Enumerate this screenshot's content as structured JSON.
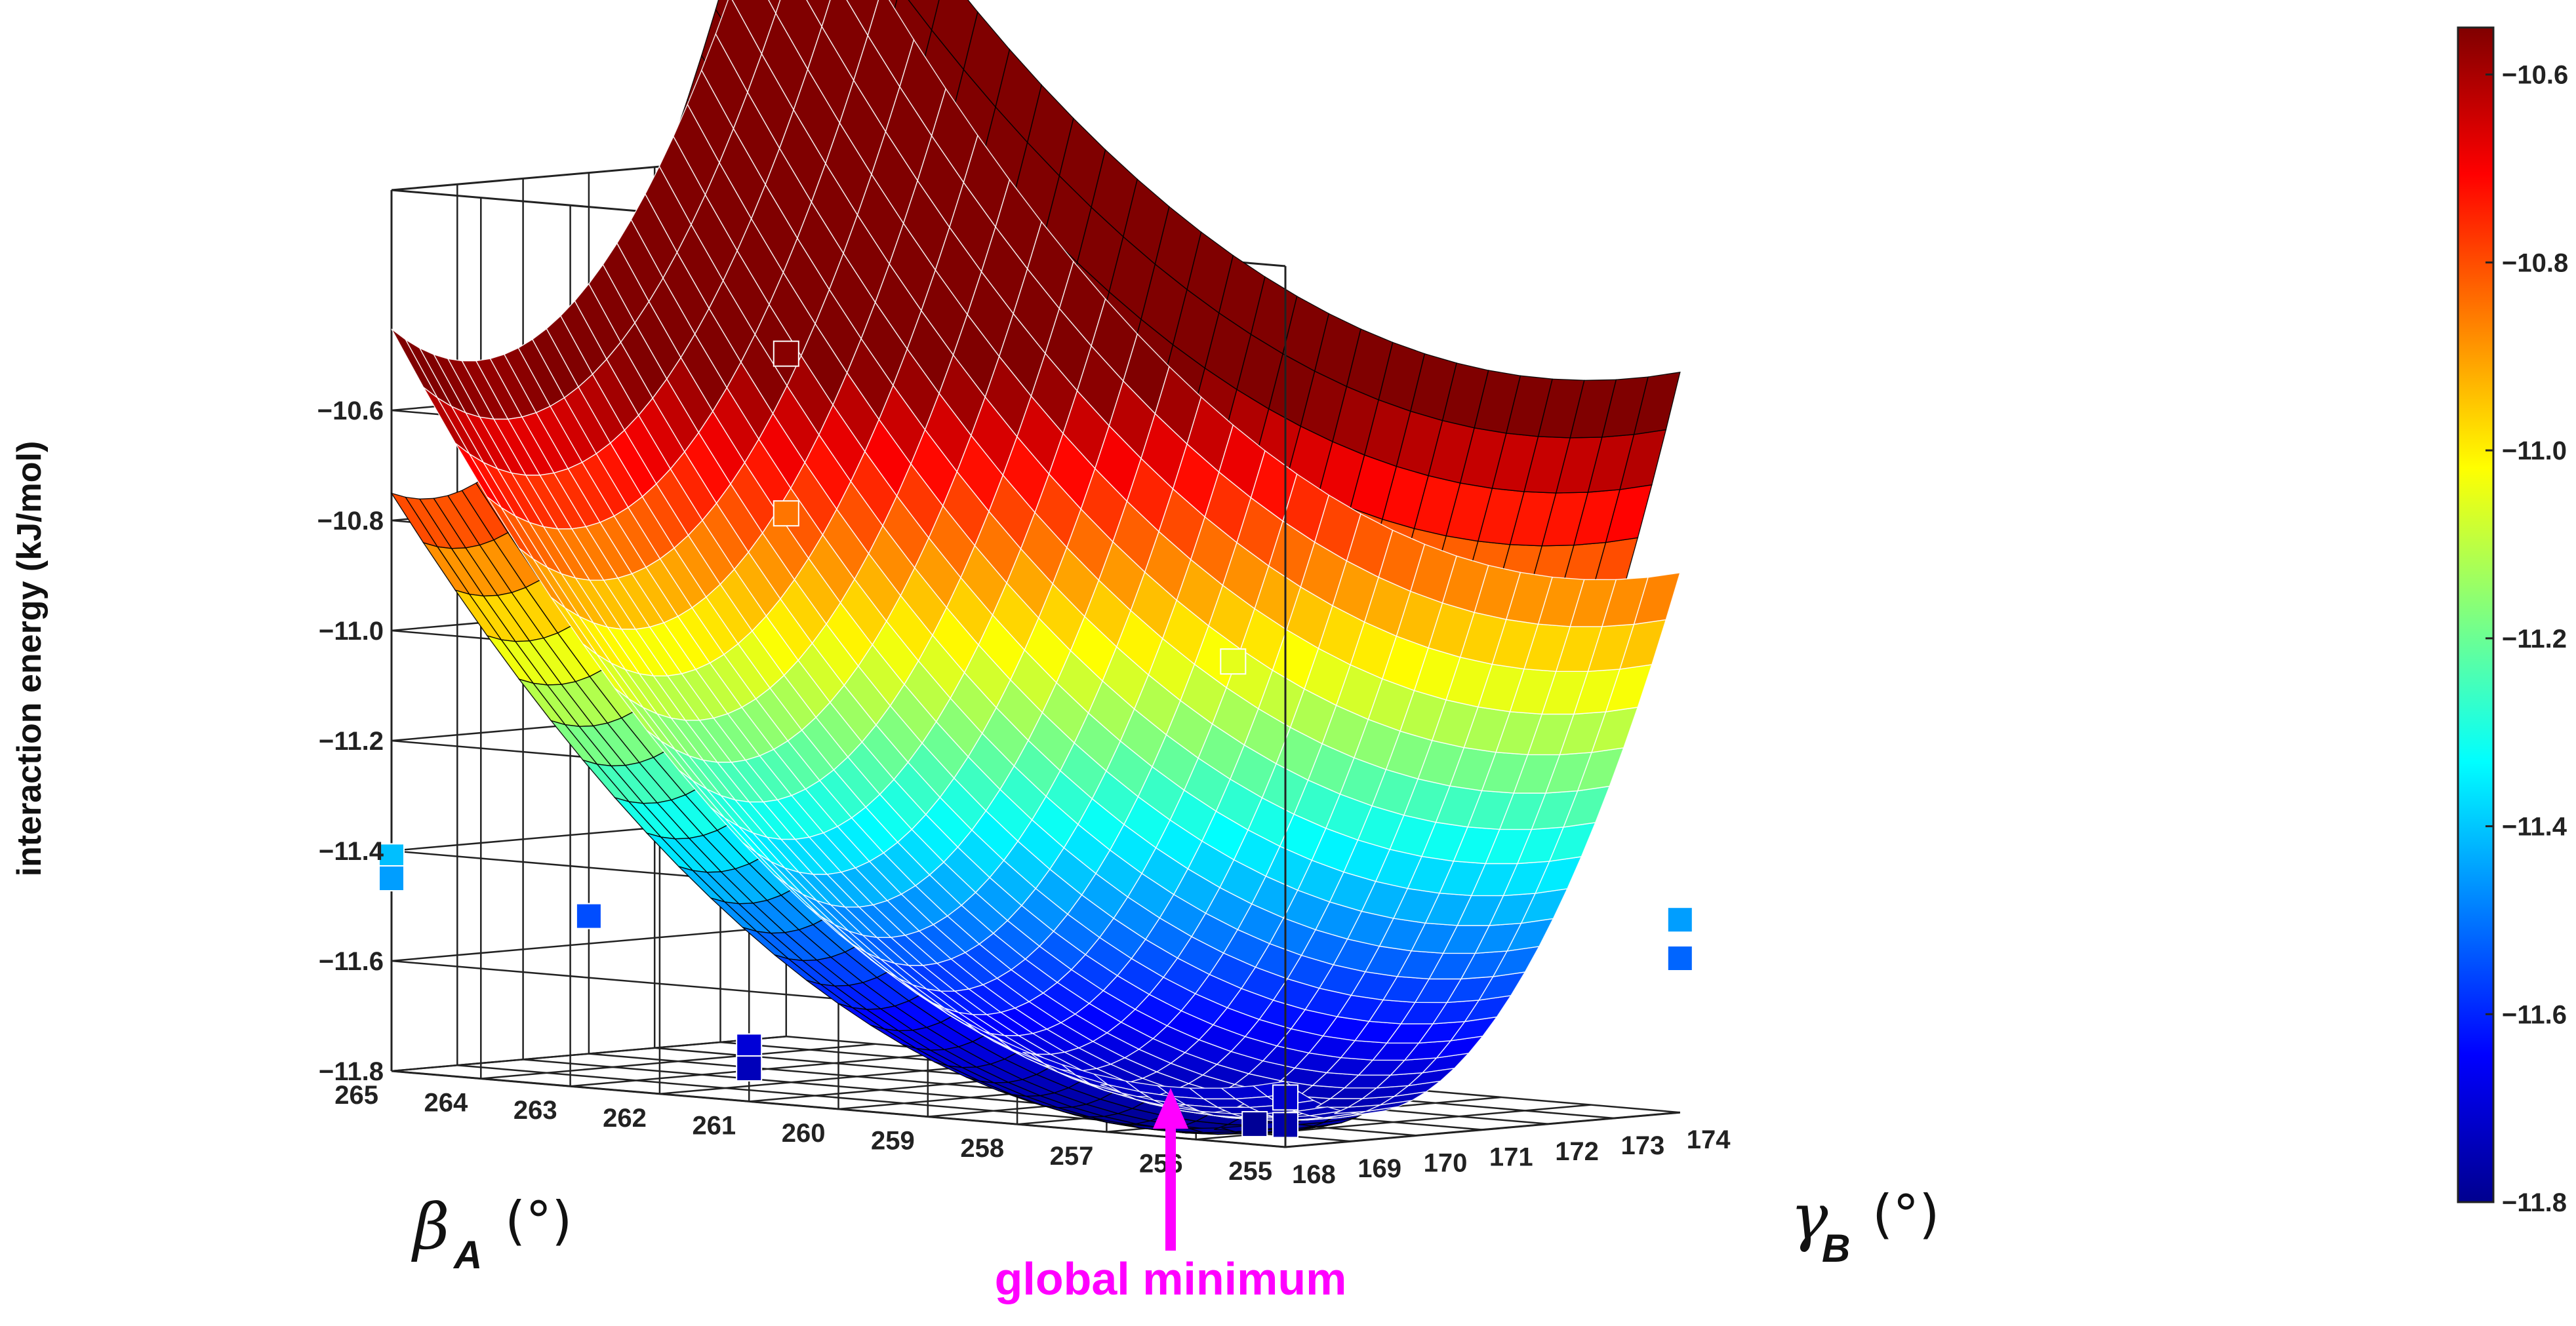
{
  "chart_data": {
    "type": "surface3d",
    "zlabel": "interaction energy (kJ/mol)",
    "beta_label": {
      "symbol": "β",
      "sub": "A",
      "unit": "(°)"
    },
    "gamma_label": {
      "symbol": "γ",
      "sub": "B",
      "unit": "(°)"
    },
    "beta_ticks": [
      "265",
      "264",
      "263",
      "262",
      "261",
      "260",
      "259",
      "258",
      "257",
      "256",
      "255"
    ],
    "gamma_ticks": [
      "168",
      "169",
      "170",
      "171",
      "172",
      "173",
      "174"
    ],
    "z_ticks": [
      "−10.6",
      "−10.8",
      "−11.0",
      "−11.2",
      "−11.4",
      "−11.6",
      "−11.8"
    ],
    "colorbar_ticks": [
      "−10.6",
      "−10.8",
      "−11.0",
      "−11.2",
      "−11.4",
      "−11.6",
      "−11.8"
    ],
    "beta_range": [
      255,
      265
    ],
    "gamma_range": [
      168,
      174
    ],
    "z_range": [
      -11.8,
      -10.55
    ],
    "colormap": "jet",
    "colorbar_range": [
      -11.8,
      -10.55
    ],
    "surfaces": [
      {
        "name": "",
        "mesh_color": "#ffffff",
        "model": "quadratic",
        "z_min": -11.78,
        "beta_min": 256.3,
        "gamma_min": 169.3,
        "a_beta": 0.0166,
        "a_gamma": 0.0422
      },
      {
        "name": "",
        "mesh_color": "#000000",
        "model": "quadratic",
        "z_min": -11.8,
        "beta_min": 256.5,
        "gamma_min": 168.6,
        "a_beta": 0.0143,
        "a_gamma": 0.045
      }
    ],
    "markers": [
      {
        "beta": 265,
        "gamma": 168,
        "z": -11.41
      },
      {
        "beta": 265,
        "gamma": 168,
        "z": -11.45
      },
      {
        "beta": 255,
        "gamma": 168,
        "z": -11.71
      },
      {
        "beta": 255,
        "gamma": 168,
        "z": -11.76
      },
      {
        "beta": 265,
        "gamma": 174,
        "z": -10.56
      },
      {
        "beta": 265,
        "gamma": 174,
        "z": -10.85
      },
      {
        "beta": 255,
        "gamma": 174,
        "z": -11.45
      },
      {
        "beta": 255,
        "gamma": 174,
        "z": -11.52
      },
      {
        "beta": 261,
        "gamma": 168,
        "z": -11.7
      },
      {
        "beta": 261,
        "gamma": 168,
        "z": -11.74
      },
      {
        "beta": 265,
        "gamma": 171,
        "z": -11.55
      },
      {
        "beta": 260,
        "gamma": 174,
        "z": -11.05
      },
      {
        "beta": 256.3,
        "gamma": 169.3,
        "z": -11.79
      }
    ],
    "annotation": "global minimum",
    "annotation_color": "#ff00ff",
    "grid": true
  }
}
